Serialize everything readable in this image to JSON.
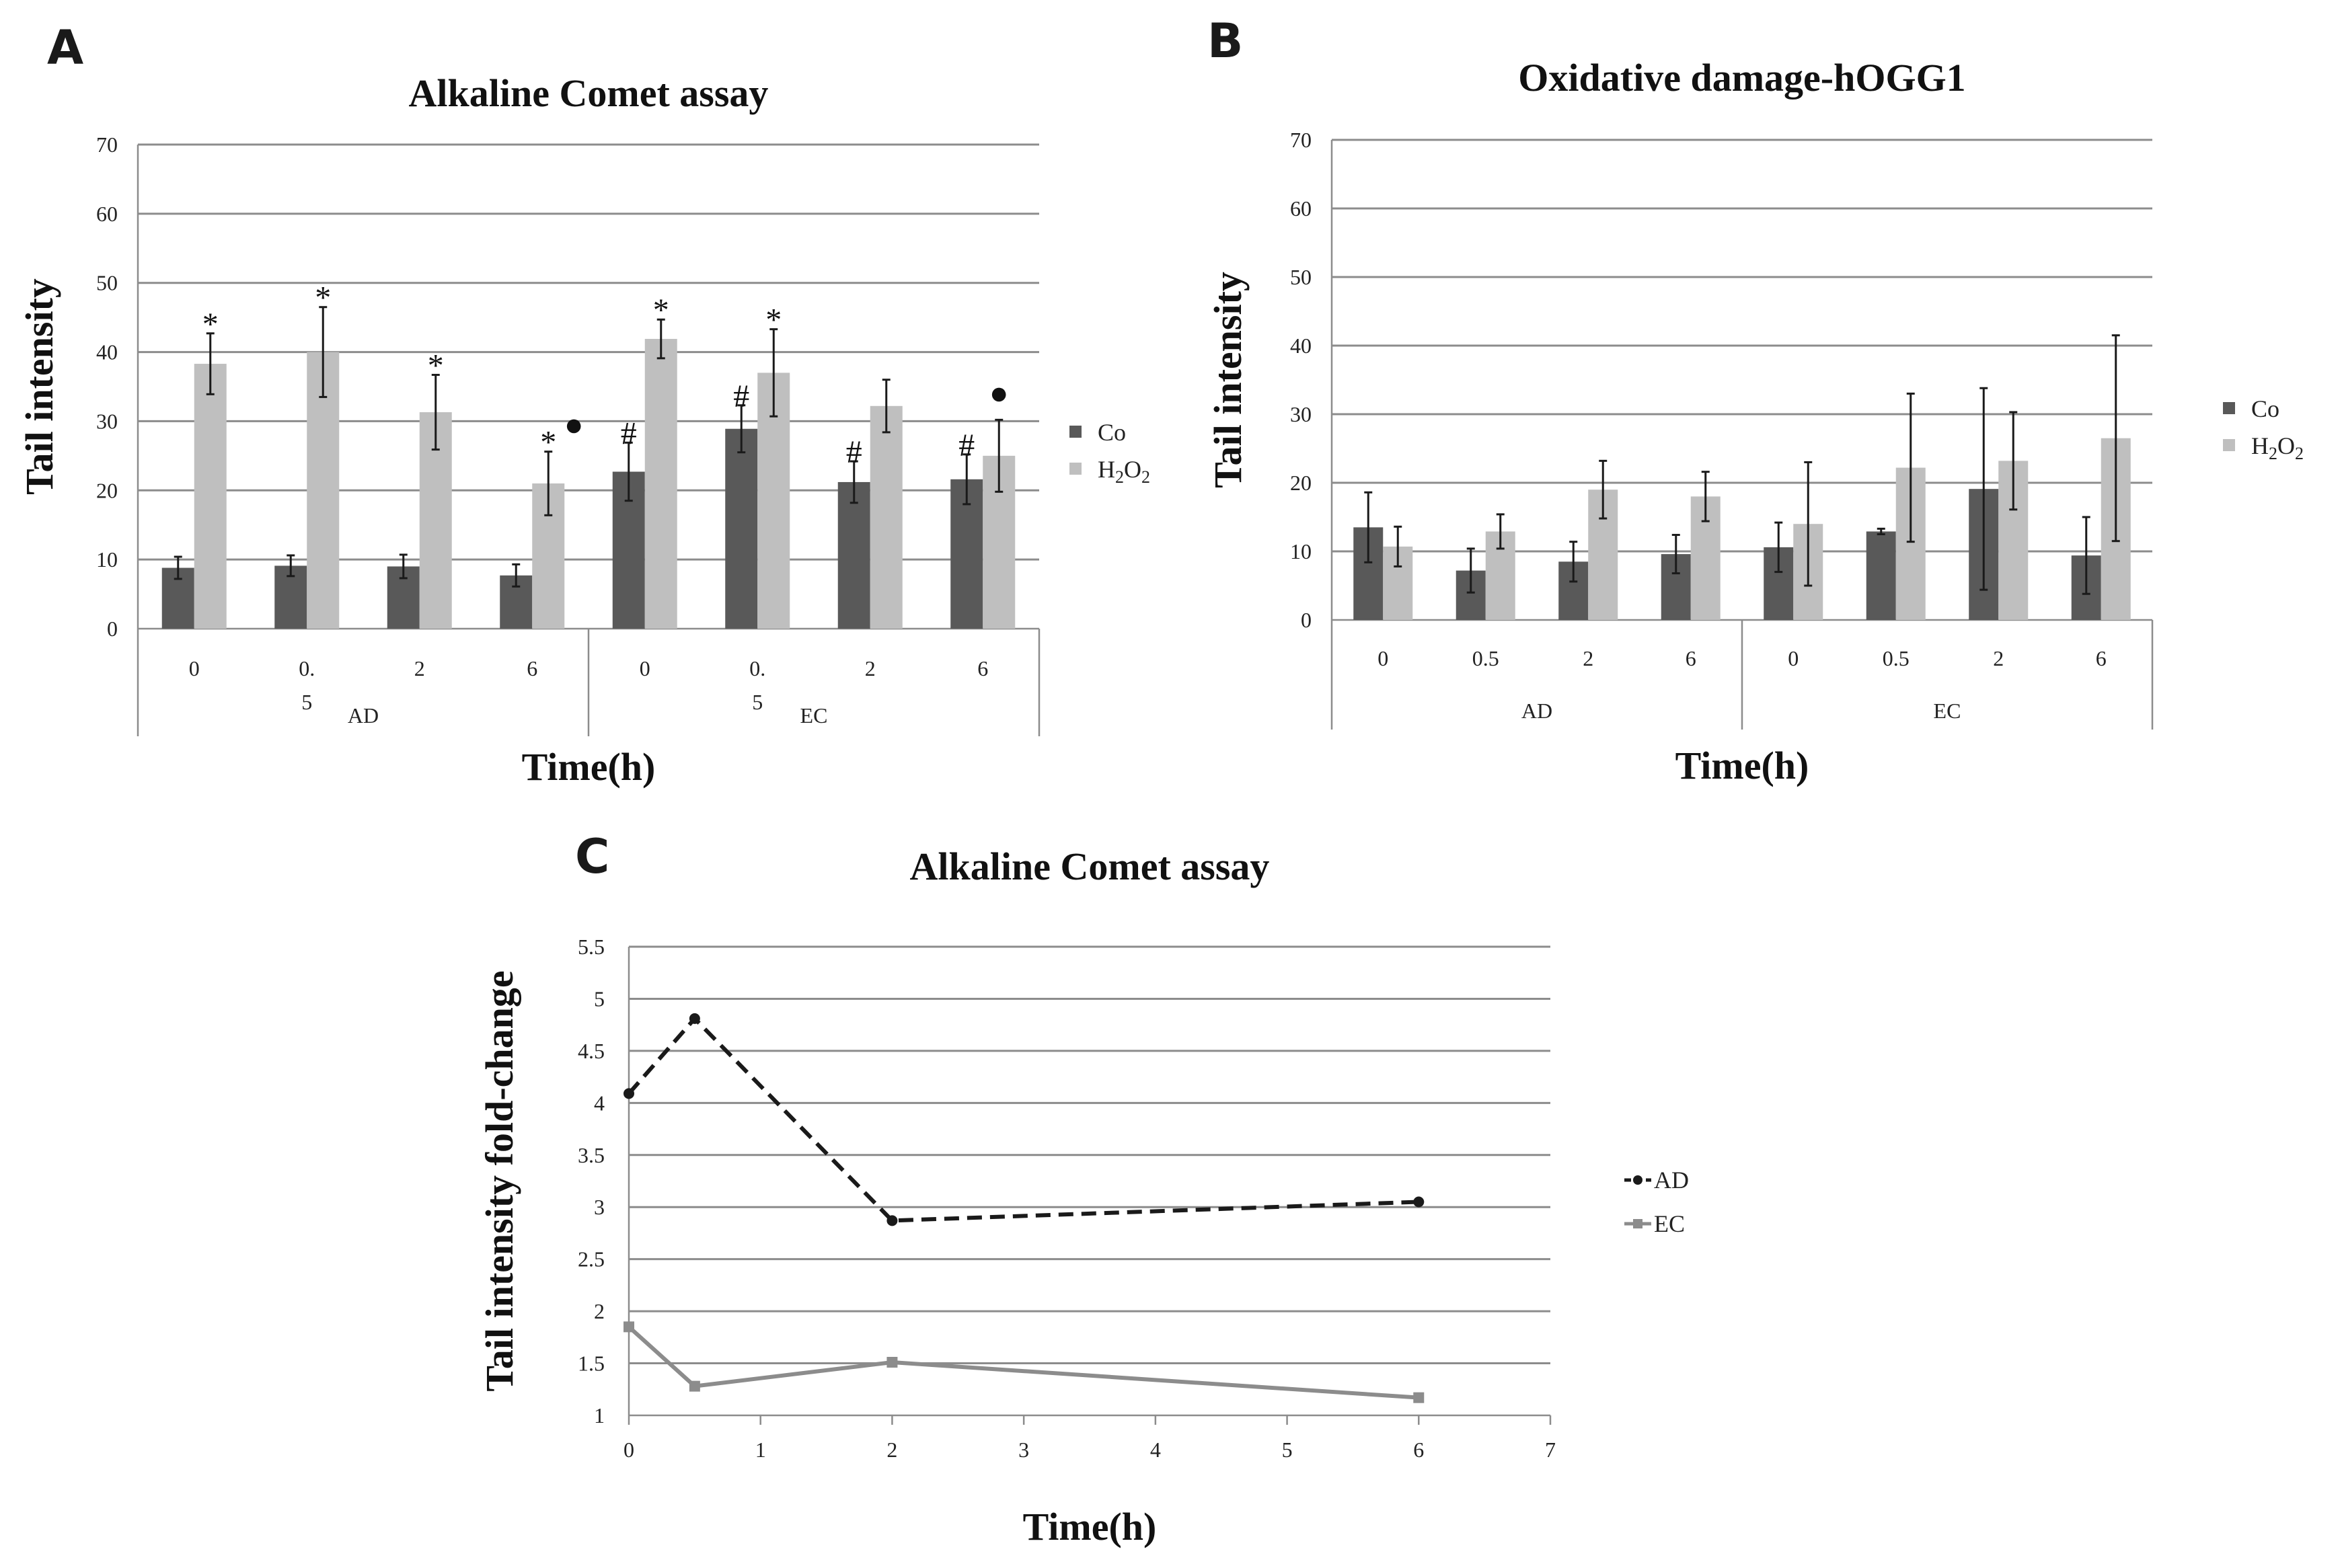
{
  "colors": {
    "co": "#595959",
    "h2o2": "#bfbfbf",
    "ad_line": "#1a1a1a",
    "ec_line": "#8c8c8c",
    "grid": "#8c8c8c"
  },
  "chart_data": [
    {
      "panel": "A",
      "type": "bar",
      "title": "Alkaline Comet assay",
      "ylabel": "Tail intensity",
      "xlabel": "Time(h)",
      "ylim": [
        0,
        70
      ],
      "yticks": [
        "0",
        "10",
        "20",
        "30",
        "40",
        "50",
        "60",
        "70"
      ],
      "groups": [
        "AD",
        "EC"
      ],
      "categories": [
        {
          "line1": "0",
          "line2": "",
          "group": "AD"
        },
        {
          "line1": "0.",
          "line2": "5",
          "group": "AD"
        },
        {
          "line1": "2",
          "line2": "",
          "group": "AD"
        },
        {
          "line1": "6",
          "line2": "",
          "group": "AD"
        },
        {
          "line1": "0",
          "line2": "",
          "group": "EC"
        },
        {
          "line1": "0.",
          "line2": "5",
          "group": "EC"
        },
        {
          "line1": "2",
          "line2": "",
          "group": "EC"
        },
        {
          "line1": "6",
          "line2": "",
          "group": "EC"
        }
      ],
      "series": [
        {
          "name": "Co",
          "values": [
            8.8,
            9.1,
            9.0,
            7.7,
            22.7,
            28.9,
            21.2,
            21.6
          ],
          "errors": [
            1.6,
            1.5,
            1.7,
            1.6,
            4.2,
            3.4,
            3.0,
            3.6
          ]
        },
        {
          "name": "H₂O₂",
          "values": [
            38.3,
            40.0,
            31.3,
            21.0,
            41.9,
            37.0,
            32.2,
            25.0
          ],
          "errors": [
            4.4,
            6.5,
            5.4,
            4.6,
            2.8,
            6.3,
            3.8,
            5.2
          ]
        }
      ],
      "legend": [
        {
          "name": "Co"
        },
        {
          "name": "H2O2",
          "base": "H",
          "sub1": "2",
          "mid": "O",
          "sub2": "2"
        }
      ],
      "annotations": [
        {
          "text": "*",
          "category": 0,
          "series": 1
        },
        {
          "text": "*",
          "category": 1,
          "series": 1
        },
        {
          "text": "*",
          "category": 2,
          "series": 1
        },
        {
          "text": "*",
          "category": 3,
          "series": 1
        },
        {
          "text": "●",
          "category": 3,
          "series": 1,
          "side": "right"
        },
        {
          "text": "*",
          "category": 4,
          "series": 1
        },
        {
          "text": "*",
          "category": 5,
          "series": 1
        },
        {
          "text": "#",
          "category": 4,
          "series": 0
        },
        {
          "text": "#",
          "category": 5,
          "series": 0
        },
        {
          "text": "#",
          "category": 6,
          "series": 0
        },
        {
          "text": "#",
          "category": 7,
          "series": 0
        },
        {
          "text": "●",
          "category": 7,
          "series": 1
        }
      ]
    },
    {
      "panel": "B",
      "type": "bar",
      "title": "Oxidative damage-hOGG1",
      "ylabel": "Tail intensity",
      "xlabel": "Time(h)",
      "ylim": [
        0,
        70
      ],
      "yticks": [
        "0",
        "10",
        "20",
        "30",
        "40",
        "50",
        "60",
        "70"
      ],
      "groups": [
        "AD",
        "EC"
      ],
      "categories": [
        {
          "line1": "0",
          "line2": "",
          "group": "AD"
        },
        {
          "line1": "0.5",
          "line2": "",
          "group": "AD"
        },
        {
          "line1": "2",
          "line2": "",
          "group": "AD"
        },
        {
          "line1": "6",
          "line2": "",
          "group": "AD"
        },
        {
          "line1": "0",
          "line2": "",
          "group": "EC"
        },
        {
          "line1": "0.5",
          "line2": "",
          "group": "EC"
        },
        {
          "line1": "2",
          "line2": "",
          "group": "EC"
        },
        {
          "line1": "6",
          "line2": "",
          "group": "EC"
        }
      ],
      "series": [
        {
          "name": "Co",
          "values": [
            13.5,
            7.2,
            8.5,
            9.6,
            10.6,
            12.9,
            19.1,
            9.4
          ],
          "errors": [
            5.1,
            3.2,
            2.9,
            2.8,
            3.6,
            0.4,
            14.7,
            5.6
          ]
        },
        {
          "name": "H₂O₂",
          "values": [
            10.7,
            12.9,
            19.0,
            18.0,
            14.0,
            22.2,
            23.2,
            26.5
          ],
          "errors": [
            2.9,
            2.5,
            4.2,
            3.6,
            9.0,
            10.8,
            7.1,
            15.0
          ]
        }
      ],
      "legend": [
        {
          "name": "Co"
        },
        {
          "name": "H2O2",
          "base": "H",
          "sub1": "2",
          "mid": "O",
          "sub2": "2"
        }
      ],
      "annotations": []
    },
    {
      "panel": "C",
      "type": "line",
      "title": "Alkaline Comet assay",
      "ylabel": "Tail intensity fold-change",
      "xlabel": "Time(h)",
      "xlim": [
        0,
        7
      ],
      "ylim": [
        1,
        5.5
      ],
      "xticks": [
        "0",
        "1",
        "2",
        "3",
        "4",
        "5",
        "6",
        "7"
      ],
      "yticks": [
        "1",
        "1.5",
        "2",
        "2.5",
        "3",
        "3.5",
        "4",
        "4.5",
        "5",
        "5.5"
      ],
      "series": [
        {
          "name": "AD",
          "x": [
            0,
            0.5,
            2,
            6
          ],
          "y": [
            4.09,
            4.81,
            2.87,
            3.05
          ],
          "style": "dashed",
          "marker": "circle"
        },
        {
          "name": "EC",
          "x": [
            0,
            0.5,
            2,
            6
          ],
          "y": [
            1.85,
            1.28,
            1.51,
            1.17
          ],
          "style": "solid",
          "marker": "square"
        }
      ]
    }
  ]
}
